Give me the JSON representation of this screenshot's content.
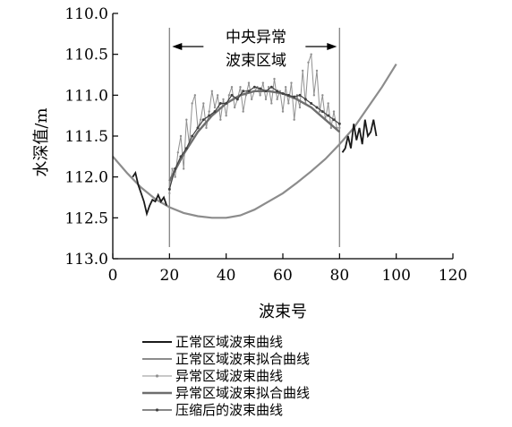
{
  "chart_data": {
    "type": "line",
    "xlabel": "波束号",
    "ylabel": "水深值/m",
    "xlim": [
      0,
      120
    ],
    "ylim": [
      110.0,
      113.0
    ],
    "y_inverted": true,
    "xticks": [
      "0",
      "20",
      "40",
      "60",
      "80",
      "100",
      "120"
    ],
    "yticks": [
      "110.0",
      "110.5",
      "111.0",
      "111.5",
      "112.0",
      "112.5",
      "113.0"
    ],
    "grid": false,
    "legend_position": "bottom",
    "annotation": {
      "line1": "中央异常",
      "line2": "波束区域"
    },
    "region_bounds": [
      20,
      80
    ],
    "series": [
      {
        "name": "正常区域波束曲线",
        "color": "#1a1a1a",
        "segments": [
          {
            "x": [
              7,
              8,
              9,
              10,
              11,
              12,
              13,
              14,
              15,
              16,
              17,
              18,
              19
            ],
            "y": [
              112.0,
              111.95,
              112.1,
              112.2,
              112.3,
              112.45,
              112.35,
              112.28,
              112.3,
              112.22,
              112.3,
              112.25,
              112.35
            ]
          },
          {
            "x": [
              81,
              82,
              83,
              84,
              85,
              86,
              87,
              88,
              89,
              90,
              91,
              92,
              93
            ],
            "y": [
              111.7,
              111.65,
              111.5,
              111.65,
              111.35,
              111.55,
              111.4,
              111.6,
              111.3,
              111.5,
              111.45,
              111.3,
              111.5
            ]
          }
        ]
      },
      {
        "name": "正常区域波束拟合曲线",
        "color": "#8c8c8c",
        "x": [
          0,
          5,
          10,
          15,
          20,
          25,
          30,
          35,
          40,
          45,
          50,
          55,
          60,
          65,
          70,
          75,
          80,
          85,
          90,
          95,
          100
        ],
        "y": [
          111.75,
          111.95,
          112.13,
          112.27,
          112.37,
          112.44,
          112.48,
          112.5,
          112.5,
          112.47,
          112.4,
          112.3,
          112.2,
          112.07,
          111.93,
          111.78,
          111.6,
          111.4,
          111.15,
          110.9,
          110.62
        ]
      },
      {
        "name": "异常区域波束曲线",
        "color": "#909090",
        "x": [
          20,
          21,
          22,
          23,
          24,
          25,
          26,
          27,
          28,
          29,
          30,
          31,
          32,
          33,
          34,
          35,
          36,
          37,
          38,
          39,
          40,
          41,
          42,
          43,
          44,
          45,
          46,
          47,
          48,
          49,
          50,
          51,
          52,
          53,
          54,
          55,
          56,
          57,
          58,
          59,
          60,
          61,
          62,
          63,
          64,
          65,
          66,
          67,
          68,
          69,
          70,
          71,
          72,
          73,
          74,
          75,
          76,
          77,
          78,
          79,
          80
        ],
        "y": [
          112.2,
          111.9,
          112.0,
          111.7,
          111.5,
          111.9,
          111.3,
          111.6,
          111.1,
          111.0,
          111.4,
          111.3,
          111.1,
          111.4,
          111.2,
          110.95,
          111.15,
          111.0,
          111.3,
          111.05,
          111.25,
          111.0,
          110.9,
          111.15,
          111.05,
          110.9,
          111.2,
          111.0,
          110.85,
          111.05,
          110.95,
          110.9,
          111.0,
          110.85,
          111.05,
          110.9,
          111.1,
          110.8,
          111.05,
          110.95,
          111.2,
          110.9,
          111.1,
          110.85,
          111.3,
          111.0,
          111.15,
          110.7,
          111.1,
          110.6,
          110.5,
          111.0,
          110.7,
          111.2,
          111.0,
          111.3,
          111.1,
          111.4,
          111.2,
          111.4,
          111.4
        ]
      },
      {
        "name": "异常区域波束拟合曲线",
        "color": "#6e6e6e",
        "x": [
          20,
          25,
          30,
          35,
          40,
          45,
          50,
          55,
          60,
          65,
          70,
          75,
          80
        ],
        "y": [
          112.05,
          111.72,
          111.45,
          111.25,
          111.1,
          111.0,
          110.95,
          110.95,
          110.98,
          111.05,
          111.15,
          111.3,
          111.45
        ]
      },
      {
        "name": "压缩后的波束曲线",
        "color": "#404040",
        "x": [
          20,
          22,
          24,
          26,
          28,
          30,
          32,
          34,
          36,
          38,
          40,
          42,
          44,
          46,
          48,
          50,
          52,
          54,
          56,
          58,
          60,
          62,
          64,
          66,
          68,
          70,
          72,
          74,
          76,
          78,
          80
        ],
        "y": [
          112.15,
          111.9,
          111.75,
          111.65,
          111.5,
          111.4,
          111.3,
          111.25,
          111.2,
          111.1,
          111.1,
          111.0,
          111.05,
          110.95,
          110.95,
          110.9,
          110.92,
          110.95,
          110.9,
          110.95,
          110.98,
          111.0,
          111.02,
          111.0,
          111.05,
          111.1,
          111.15,
          111.2,
          111.25,
          111.3,
          111.35
        ]
      }
    ]
  }
}
